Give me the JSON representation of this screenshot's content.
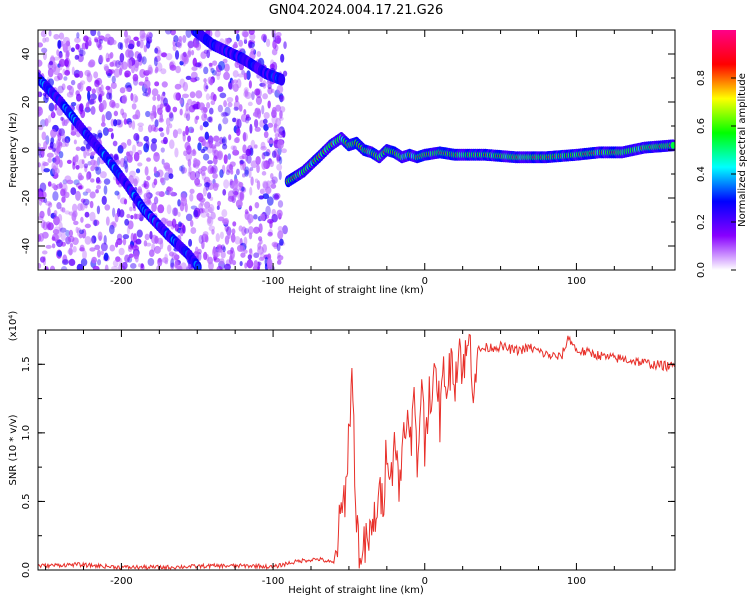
{
  "figure": {
    "title": "GN04.2024.004.17.21.G26"
  },
  "colors": {
    "snr_line": "#e8302a",
    "axis": "#000000",
    "background": "#ffffff"
  },
  "chart_data": [
    {
      "type": "heatmap",
      "title": "",
      "xlabel": "Height of straight line (km)",
      "ylabel": "Frequency (Hz)",
      "xlim": [
        -255,
        165
      ],
      "ylim": [
        -50,
        50
      ],
      "xticks": [
        -200,
        -100,
        0,
        100
      ],
      "yticks": [
        -40,
        -20,
        0,
        20,
        40
      ],
      "colorbar": {
        "label": "Normalized spectral amplitude",
        "range": [
          0,
          1
        ],
        "ticks": [
          "0.0",
          "0.2",
          "0.4",
          "0.6",
          "0.8"
        ],
        "tick_values": [
          0.0,
          0.2,
          0.4,
          0.6,
          0.8
        ],
        "colormap": [
          "#ffffff",
          "#8800ff",
          "#0000ff",
          "#00ffff",
          "#00ff00",
          "#ffff00",
          "#ff0000",
          "#ff0088"
        ]
      },
      "ridges": [
        {
          "name": "",
          "points": [
            [
              -255,
              30
            ],
            [
              -240,
              20
            ],
            [
              -225,
              8
            ],
            [
              -210,
              -3
            ],
            [
              -197,
              -14
            ],
            [
              -185,
              -25
            ],
            [
              -170,
              -35
            ],
            [
              -155,
              -44
            ],
            [
              -148,
              -50
            ]
          ],
          "amplitude": 0.35
        },
        {
          "name": "",
          "points": [
            [
              -152,
              50
            ],
            [
              -140,
              44
            ],
            [
              -120,
              38
            ],
            [
              -105,
              32
            ],
            [
              -93,
              29
            ]
          ],
          "amplitude": 0.3
        },
        {
          "name": "",
          "points": [
            [
              -90,
              -13
            ],
            [
              -80,
              -9
            ],
            [
              -70,
              -3
            ],
            [
              -62,
              2
            ],
            [
              -55,
              5
            ],
            [
              -50,
              2
            ],
            [
              -45,
              3
            ],
            [
              -40,
              0
            ],
            [
              -35,
              -1
            ],
            [
              -30,
              -3
            ],
            [
              -25,
              0
            ],
            [
              -20,
              -1
            ],
            [
              -15,
              -3
            ],
            [
              -10,
              -2
            ],
            [
              -5,
              -3
            ],
            [
              0,
              -2
            ],
            [
              10,
              -1
            ],
            [
              20,
              -2
            ],
            [
              40,
              -2
            ],
            [
              60,
              -3
            ],
            [
              80,
              -3
            ],
            [
              100,
              -2
            ],
            [
              115,
              -1
            ],
            [
              130,
              -1
            ],
            [
              145,
              1
            ],
            [
              165,
              2
            ]
          ],
          "amplitude": 0.75
        }
      ],
      "noise_region": [
        -255,
        -92
      ]
    },
    {
      "type": "line",
      "title": "",
      "xlabel": "Height of straight line (km)",
      "ylabel": "SNR (10 * v/v)",
      "y_multiplier": "(x10⁴)",
      "xlim": [
        -255,
        165
      ],
      "ylim": [
        0,
        1.75
      ],
      "xticks": [
        -200,
        -100,
        0,
        100
      ],
      "yticks": [
        0.0,
        0.5,
        1.0,
        1.5
      ],
      "ytick_labels": [
        "0.0",
        "0.5",
        "1.0",
        "1.5"
      ],
      "series": [
        {
          "name": "",
          "x": [
            -255,
            -230,
            -200,
            -170,
            -140,
            -110,
            -100,
            -90,
            -80,
            -70,
            -60,
            -52,
            -48,
            -45,
            -42,
            -40,
            -38,
            -35,
            -32,
            -30,
            -27,
            -25,
            -22,
            -20,
            -17,
            -15,
            -12,
            -10,
            -7,
            -5,
            -2,
            0,
            3,
            5,
            8,
            10,
            13,
            15,
            18,
            20,
            23,
            25,
            28,
            30,
            32,
            35,
            40,
            50,
            60,
            70,
            80,
            90,
            95,
            100,
            110,
            120,
            130,
            140,
            150,
            165
          ],
          "y": [
            0.03,
            0.04,
            0.02,
            0.02,
            0.03,
            0.03,
            0.02,
            0.05,
            0.07,
            0.08,
            0.05,
            0.6,
            1.43,
            0.35,
            0.05,
            0.15,
            0.2,
            0.25,
            0.45,
            0.5,
            0.55,
            0.95,
            0.65,
            1.05,
            0.55,
            0.9,
            1.2,
            0.85,
            1.25,
            0.7,
            1.45,
            0.9,
            1.35,
            1.25,
            1.45,
            1.1,
            1.5,
            1.3,
            1.6,
            1.4,
            1.65,
            1.45,
            1.6,
            1.65,
            1.35,
            1.6,
            1.62,
            1.63,
            1.6,
            1.62,
            1.57,
            1.55,
            1.7,
            1.6,
            1.58,
            1.55,
            1.54,
            1.52,
            1.5,
            1.48
          ]
        }
      ]
    }
  ]
}
